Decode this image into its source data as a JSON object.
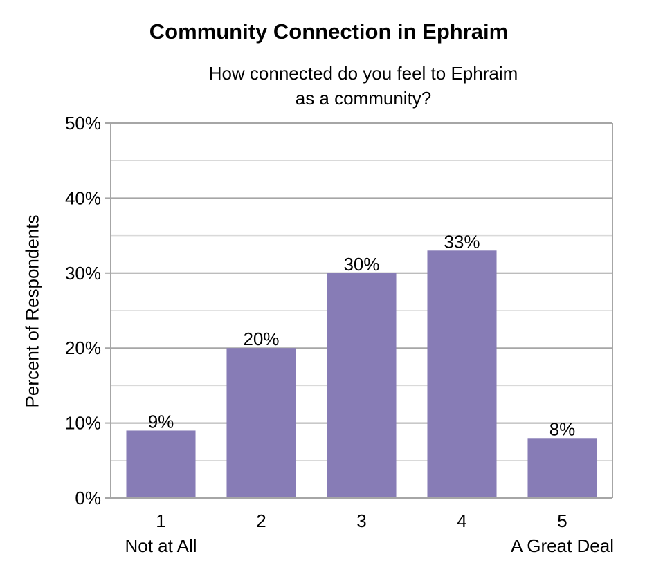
{
  "chart_data": {
    "type": "bar",
    "title": "Community Connection in Ephraim",
    "subtitle_lines": [
      "How connected do you feel to Ephraim",
      "as a community?"
    ],
    "xlabel": "",
    "ylabel": "Percent of Respondents",
    "categories": [
      "1",
      "2",
      "3",
      "4",
      "5"
    ],
    "category_sublabels": [
      "Not at All",
      "",
      "",
      "",
      "A Great Deal"
    ],
    "values": [
      9,
      20,
      30,
      33,
      8
    ],
    "value_labels": [
      "9%",
      "20%",
      "30%",
      "33%",
      "8%"
    ],
    "ylim": [
      0,
      50
    ],
    "yticks": [
      0,
      10,
      20,
      30,
      40,
      50
    ],
    "ytick_labels": [
      "0%",
      "10%",
      "20%",
      "30%",
      "40%",
      "50%"
    ],
    "minor_gridlines": true,
    "grid": true,
    "legend": "none",
    "bar_color": "#877cb6"
  }
}
